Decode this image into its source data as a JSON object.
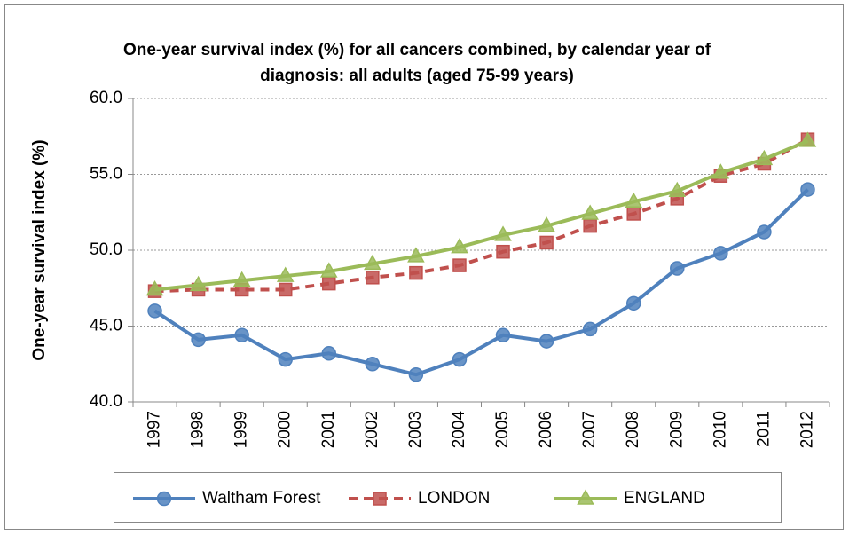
{
  "chart_data": {
    "type": "line",
    "title": "One-year survival index (%) for all cancers combined, by calendar year of diagnosis: all adults (aged 75-99 years)",
    "y_label": "One-year survival index (%)",
    "categories": [
      "1997",
      "1998",
      "1999",
      "2000",
      "2001",
      "2002",
      "2003",
      "2004",
      "2005",
      "2006",
      "2007",
      "2008",
      "2009",
      "2010",
      "2011",
      "2012"
    ],
    "series": [
      {
        "name": "Waltham Forest",
        "color": "#4f81bd",
        "marker": "circle",
        "dash": false,
        "values": [
          46.0,
          44.1,
          44.4,
          42.8,
          43.2,
          42.5,
          41.8,
          42.8,
          44.4,
          44.0,
          44.8,
          46.5,
          48.8,
          49.8,
          51.2,
          54.0
        ]
      },
      {
        "name": "LONDON",
        "color": "#c0504d",
        "marker": "square",
        "dash": true,
        "values": [
          47.3,
          47.4,
          47.4,
          47.4,
          47.8,
          48.2,
          48.5,
          49.0,
          49.9,
          50.5,
          51.6,
          52.4,
          53.4,
          54.9,
          55.7,
          57.3
        ]
      },
      {
        "name": "ENGLAND",
        "color": "#9bbb59",
        "marker": "triangle",
        "dash": false,
        "values": [
          47.4,
          47.7,
          48.0,
          48.3,
          48.6,
          49.1,
          49.6,
          50.2,
          51.0,
          51.6,
          52.4,
          53.2,
          53.9,
          55.1,
          56.0,
          57.2
        ]
      }
    ],
    "ylim": [
      40,
      60
    ],
    "yticks": [
      {
        "value": 40,
        "label": "40.0"
      },
      {
        "value": 45,
        "label": "45.0"
      },
      {
        "value": 50,
        "label": "50.0"
      },
      {
        "value": 55,
        "label": "55.0"
      },
      {
        "value": 60,
        "label": "60.0"
      }
    ],
    "grid": true,
    "legend": "bottom"
  }
}
